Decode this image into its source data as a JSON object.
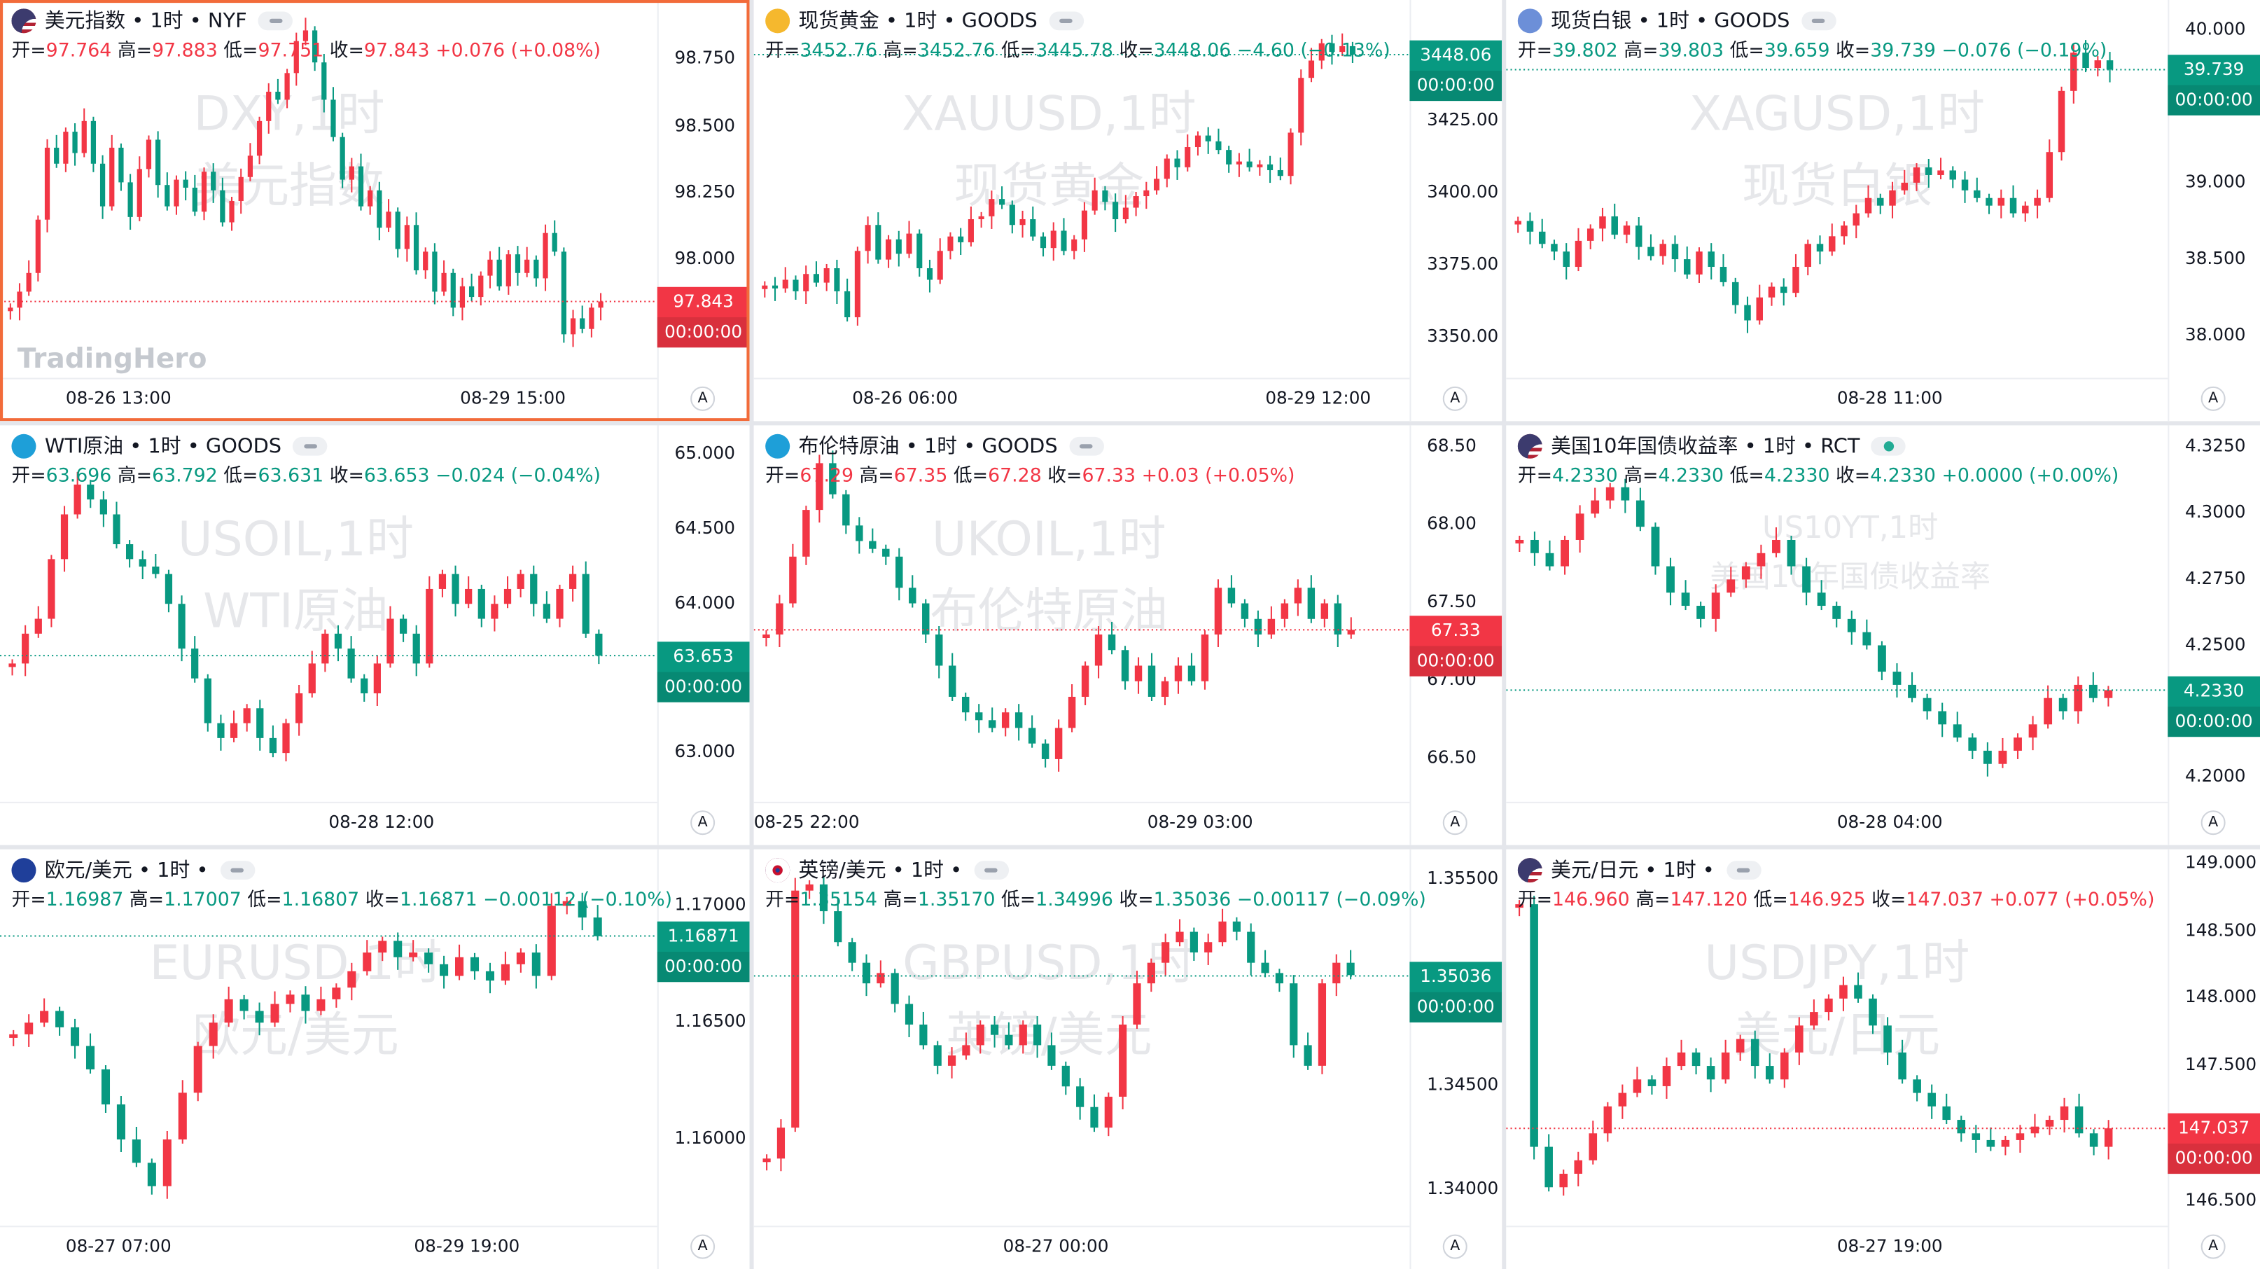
{
  "app": {
    "logo": "TradingHero"
  },
  "colors": {
    "up": "#f23645",
    "down": "#089981",
    "watermark": "#e6e7ea",
    "active_border": "#f26b3a"
  },
  "panels": [
    {
      "symbol_header": "美元指数 • 1时 • NYF",
      "flag_icon": "us-flag-icon",
      "ohlc": {
        "open_label": "开=",
        "open": "97.764",
        "high_label": "高=",
        "high": "97.883",
        "low_label": "低=",
        "low": "97.751",
        "close_label": "收=",
        "close": "97.843",
        "change": "+0.076 (+0.08%)",
        "direction": "up"
      },
      "watermark_line1": "DXY,1时",
      "watermark_line2": "美元指数",
      "y_ticks": [
        "98.750",
        "98.500",
        "98.250",
        "98.000"
      ],
      "x_ticks": [
        "08-26 13:00",
        "08-29 15:00"
      ],
      "price_tag": {
        "value": "97.843",
        "countdown": "00:00:00"
      },
      "auto_label": "A",
      "chart_data": {
        "type": "candlestick",
        "y_range": [
          97.6,
          98.92
        ],
        "last": 97.843,
        "candle_closes": [
          97.82,
          97.88,
          97.95,
          98.15,
          98.42,
          98.36,
          98.48,
          98.4,
          98.52,
          98.36,
          98.2,
          98.42,
          98.29,
          98.16,
          98.34,
          98.45,
          98.28,
          98.2,
          98.3,
          98.27,
          98.18,
          98.33,
          98.26,
          98.14,
          98.22,
          98.31,
          98.39,
          98.52,
          98.63,
          98.6,
          98.7,
          98.82,
          98.86,
          98.74,
          98.6,
          98.46,
          98.3,
          98.35,
          98.2,
          98.26,
          98.12,
          98.18,
          98.04,
          98.13,
          97.96,
          98.03,
          97.88,
          97.95,
          97.82,
          97.9,
          97.86,
          97.94,
          98.0,
          97.9,
          98.02,
          97.95,
          98.0,
          97.93,
          98.1,
          98.03,
          97.72,
          97.78,
          97.74,
          97.82,
          97.843
        ]
      }
    },
    {
      "symbol_header": "现货黄金 • 1时 • GOODS",
      "flag_icon": "gold-icon",
      "ohlc": {
        "open_label": "开=",
        "open": "3452.76",
        "high_label": "高=",
        "high": "3452.76",
        "low_label": "低=",
        "low": "3445.78",
        "close_label": "收=",
        "close": "3448.06",
        "change": "−4.60 (−0.13%)",
        "direction": "down"
      },
      "watermark_line1": "XAUUSD,1时",
      "watermark_line2": "现货黄金",
      "y_ticks": [
        "3425.00",
        "3400.00",
        "3375.00",
        "3350.00"
      ],
      "x_ticks": [
        "08-26 06:00",
        "08-29 12:00"
      ],
      "price_tag": {
        "value": "3448.06",
        "countdown": "00:00:00"
      },
      "auto_label": "A",
      "chart_data": {
        "type": "candlestick",
        "y_range": [
          3340,
          3462
        ],
        "last": 3448.06,
        "candle_closes": [
          3368,
          3367,
          3370,
          3366,
          3372,
          3369,
          3374,
          3366,
          3357,
          3380,
          3389,
          3377,
          3384,
          3379,
          3386,
          3374,
          3370,
          3380,
          3385,
          3383,
          3391,
          3392,
          3398,
          3396,
          3389,
          3391,
          3385,
          3381,
          3387,
          3380,
          3384,
          3394,
          3401,
          3397,
          3391,
          3395,
          3399,
          3401,
          3405,
          3412,
          3409,
          3416,
          3420,
          3418,
          3415,
          3410,
          3411,
          3409,
          3410,
          3408,
          3406,
          3421,
          3440,
          3446,
          3452,
          3449,
          3451,
          3448.06
        ]
      }
    },
    {
      "symbol_header": "现货白银 • 1时 • GOODS",
      "flag_icon": "silver-icon",
      "ohlc": {
        "open_label": "开=",
        "open": "39.802",
        "high_label": "高=",
        "high": "39.803",
        "low_label": "低=",
        "low": "39.659",
        "close_label": "收=",
        "close": "39.739",
        "change": "−0.076 (−0.19%)",
        "direction": "down"
      },
      "watermark_line1": "XAGUSD,1时",
      "watermark_line2": "现货白银",
      "y_ticks": [
        "40.000",
        "39.500",
        "39.000",
        "38.500",
        "38.000"
      ],
      "x_ticks": [
        "08-28 11:00"
      ],
      "price_tag": {
        "value": "39.739",
        "countdown": "00:00:00"
      },
      "auto_label": "A",
      "chart_data": {
        "type": "candlestick",
        "y_range": [
          37.8,
          40.1
        ],
        "last": 39.739,
        "candle_closes": [
          38.75,
          38.68,
          38.6,
          38.55,
          38.45,
          38.62,
          38.7,
          38.78,
          38.66,
          38.72,
          38.58,
          38.52,
          38.6,
          38.5,
          38.4,
          38.55,
          38.45,
          38.35,
          38.2,
          38.1,
          38.25,
          38.32,
          38.28,
          38.45,
          38.6,
          38.55,
          38.65,
          38.72,
          38.8,
          38.9,
          38.85,
          38.95,
          39.0,
          39.1,
          39.05,
          39.08,
          39.02,
          38.95,
          38.9,
          38.85,
          38.9,
          38.8,
          38.85,
          38.9,
          39.2,
          39.6,
          39.85,
          39.75,
          39.8,
          39.739
        ]
      }
    },
    {
      "symbol_header": "WTI原油 • 1时 • GOODS",
      "flag_icon": "oil-icon",
      "ohlc": {
        "open_label": "开=",
        "open": "63.696",
        "high_label": "高=",
        "high": "63.792",
        "low_label": "低=",
        "low": "63.631",
        "close_label": "收=",
        "close": "63.653",
        "change": "−0.024 (−0.04%)",
        "direction": "down"
      },
      "watermark_line1": "USOIL,1时",
      "watermark_line2": "WTI原油",
      "y_ticks": [
        "65.000",
        "64.500",
        "64.000",
        "63.000"
      ],
      "x_ticks": [
        "08-28 12:00"
      ],
      "price_tag": {
        "value": "63.653",
        "countdown": "00:00:00"
      },
      "auto_label": "A",
      "chart_data": {
        "type": "candlestick",
        "y_range": [
          62.75,
          65.1
        ],
        "last": 63.653,
        "candle_closes": [
          63.6,
          63.8,
          63.9,
          64.3,
          64.6,
          64.8,
          64.7,
          64.6,
          64.4,
          64.3,
          64.25,
          64.2,
          64.0,
          63.7,
          63.5,
          63.2,
          63.1,
          63.2,
          63.3,
          63.1,
          63.0,
          63.2,
          63.4,
          63.6,
          63.8,
          63.7,
          63.5,
          63.4,
          63.6,
          63.9,
          63.8,
          63.6,
          64.1,
          64.2,
          64.0,
          64.1,
          63.9,
          64.0,
          64.1,
          64.2,
          64.0,
          63.9,
          64.1,
          64.2,
          63.8,
          63.653
        ]
      }
    },
    {
      "symbol_header": "布伦特原油 • 1时 • GOODS",
      "flag_icon": "brent-oil-icon",
      "ohlc": {
        "open_label": "开=",
        "open": "67.29",
        "high_label": "高=",
        "high": "67.35",
        "low_label": "低=",
        "low": "67.28",
        "close_label": "收=",
        "close": "67.33",
        "change": "+0.03 (+0.05%)",
        "direction": "up"
      },
      "watermark_line1": "UKOIL,1时",
      "watermark_line2": "布伦特原油",
      "y_ticks": [
        "68.50",
        "68.00",
        "67.50",
        "67.00",
        "66.50"
      ],
      "x_ticks": [
        "08-25 22:00",
        "08-29 03:00"
      ],
      "price_tag": {
        "value": "67.33",
        "countdown": "00:00:00"
      },
      "auto_label": "A",
      "chart_data": {
        "type": "candlestick",
        "y_range": [
          66.3,
          68.55
        ],
        "last": 67.33,
        "candle_closes": [
          67.3,
          67.5,
          67.8,
          68.1,
          68.4,
          68.2,
          68.0,
          67.9,
          67.85,
          67.8,
          67.6,
          67.5,
          67.3,
          67.1,
          66.9,
          66.8,
          66.75,
          66.7,
          66.8,
          66.7,
          66.6,
          66.5,
          66.7,
          66.9,
          67.1,
          67.3,
          67.2,
          67.0,
          67.1,
          66.9,
          67.0,
          67.1,
          67.0,
          67.3,
          67.6,
          67.5,
          67.4,
          67.3,
          67.4,
          67.5,
          67.6,
          67.4,
          67.5,
          67.3,
          67.33
        ]
      }
    },
    {
      "symbol_header": "美国10年国债收益率 • 1时 • RCT",
      "flag_icon": "us-flag-icon",
      "ohlc": {
        "open_label": "开=",
        "open": "4.2330",
        "high_label": "高=",
        "high": "4.2330",
        "low_label": "低=",
        "low": "4.2330",
        "close_label": "收=",
        "close": "4.2330",
        "change": "+0.0000 (+0.00%)",
        "direction": "down"
      },
      "watermark_line1": "US10YT,1时",
      "watermark_line2": "美国10年国债收益率",
      "y_ticks": [
        "4.3250",
        "4.3000",
        "4.2750",
        "4.2500",
        "4.2000"
      ],
      "x_ticks": [
        "08-28 04:00"
      ],
      "price_tag": {
        "value": "4.2330",
        "countdown": "00:00:00"
      },
      "auto_label": "A",
      "chart_data": {
        "type": "candlestick",
        "y_range": [
          4.195,
          4.328
        ],
        "last": 4.233,
        "candle_closes": [
          4.29,
          4.285,
          4.28,
          4.29,
          4.3,
          4.305,
          4.31,
          4.305,
          4.295,
          4.28,
          4.27,
          4.265,
          4.26,
          4.27,
          4.275,
          4.28,
          4.285,
          4.29,
          4.28,
          4.27,
          4.265,
          4.26,
          4.255,
          4.25,
          4.24,
          4.235,
          4.23,
          4.225,
          4.22,
          4.215,
          4.21,
          4.205,
          4.21,
          4.215,
          4.22,
          4.23,
          4.225,
          4.235,
          4.23,
          4.233
        ]
      }
    },
    {
      "symbol_header": "欧元/美元 • 1时 •",
      "flag_icon": "eu-flag-icon",
      "ohlc": {
        "open_label": "开=",
        "open": "1.16987",
        "high_label": "高=",
        "high": "1.17007",
        "low_label": "低=",
        "low": "1.16807",
        "close_label": "收=",
        "close": "1.16871",
        "change": "−0.00112 (−0.10%)",
        "direction": "down"
      },
      "watermark_line1": "EURUSD,1时",
      "watermark_line2": "欧元/美元",
      "y_ticks": [
        "1.17000",
        "1.16500",
        "1.16000"
      ],
      "x_ticks": [
        "08-27 07:00",
        "08-29 19:00"
      ],
      "price_tag": {
        "value": "1.16871",
        "countdown": "00:00:00"
      },
      "auto_label": "A",
      "chart_data": {
        "type": "candlestick",
        "y_range": [
          1.1568,
          1.1718
        ],
        "last": 1.16871,
        "candle_closes": [
          1.1645,
          1.165,
          1.1655,
          1.1648,
          1.164,
          1.163,
          1.1615,
          1.16,
          1.159,
          1.158,
          1.16,
          1.162,
          1.164,
          1.165,
          1.166,
          1.1655,
          1.165,
          1.1658,
          1.1662,
          1.1655,
          1.166,
          1.1665,
          1.1672,
          1.168,
          1.1685,
          1.1678,
          1.168,
          1.1675,
          1.167,
          1.1678,
          1.1672,
          1.1668,
          1.1675,
          1.168,
          1.167,
          1.17,
          1.1702,
          1.1695,
          1.1687
        ]
      }
    },
    {
      "symbol_header": "英镑/美元 • 1时 •",
      "flag_icon": "uk-flag-icon",
      "ohlc": {
        "open_label": "开=",
        "open": "1.35154",
        "high_label": "高=",
        "high": "1.35170",
        "low_label": "低=",
        "low": "1.34996",
        "close_label": "收=",
        "close": "1.35036",
        "change": "−0.00117 (−0.09%)",
        "direction": "down"
      },
      "watermark_line1": "GBPUSD,1时",
      "watermark_line2": "英镑/美元",
      "y_ticks": [
        "1.35500",
        "1.35000",
        "1.34500",
        "1.34000"
      ],
      "x_ticks": [
        "08-27 00:00"
      ],
      "price_tag": {
        "value": "1.35036",
        "countdown": "00:00:00"
      },
      "auto_label": "A",
      "chart_data": {
        "type": "candlestick",
        "y_range": [
          1.3388,
          1.3558
        ],
        "last": 1.35036,
        "candle_closes": [
          1.3415,
          1.343,
          1.3545,
          1.3548,
          1.3535,
          1.352,
          1.351,
          1.35,
          1.3505,
          1.349,
          1.348,
          1.347,
          1.346,
          1.3465,
          1.347,
          1.348,
          1.3475,
          1.347,
          1.348,
          1.347,
          1.346,
          1.345,
          1.344,
          1.343,
          1.3445,
          1.348,
          1.35,
          1.351,
          1.352,
          1.3525,
          1.3515,
          1.352,
          1.353,
          1.3525,
          1.351,
          1.3505,
          1.35,
          1.347,
          1.346,
          1.35,
          1.351,
          1.3504
        ]
      }
    },
    {
      "symbol_header": "美元/日元 • 1时 •",
      "flag_icon": "us-flag-icon",
      "ohlc": {
        "open_label": "开=",
        "open": "146.960",
        "high_label": "高=",
        "high": "147.120",
        "low_label": "低=",
        "low": "146.925",
        "close_label": "收=",
        "close": "147.037",
        "change": "+0.077 (+0.05%)",
        "direction": "up"
      },
      "watermark_line1": "USDJPY,1时",
      "watermark_line2": "美元/日元",
      "y_ticks": [
        "149.000",
        "148.500",
        "148.000",
        "147.500",
        "147.000",
        "146.500"
      ],
      "x_ticks": [
        "08-27 19:00"
      ],
      "price_tag": {
        "value": "147.037",
        "countdown": "00:00:00"
      },
      "auto_label": "A",
      "chart_data": {
        "type": "candlestick",
        "y_range": [
          146.4,
          149.0
        ],
        "last": 147.037,
        "candle_closes": [
          148.7,
          146.9,
          146.6,
          146.7,
          146.8,
          147.0,
          147.2,
          147.3,
          147.4,
          147.35,
          147.5,
          147.6,
          147.5,
          147.4,
          147.6,
          147.7,
          147.5,
          147.4,
          147.6,
          147.8,
          147.9,
          148.0,
          148.1,
          148.0,
          147.8,
          147.6,
          147.4,
          147.3,
          147.2,
          147.1,
          147.0,
          146.95,
          146.9,
          146.95,
          147.0,
          147.05,
          147.1,
          147.2,
          147.0,
          146.9,
          147.037
        ]
      }
    }
  ]
}
